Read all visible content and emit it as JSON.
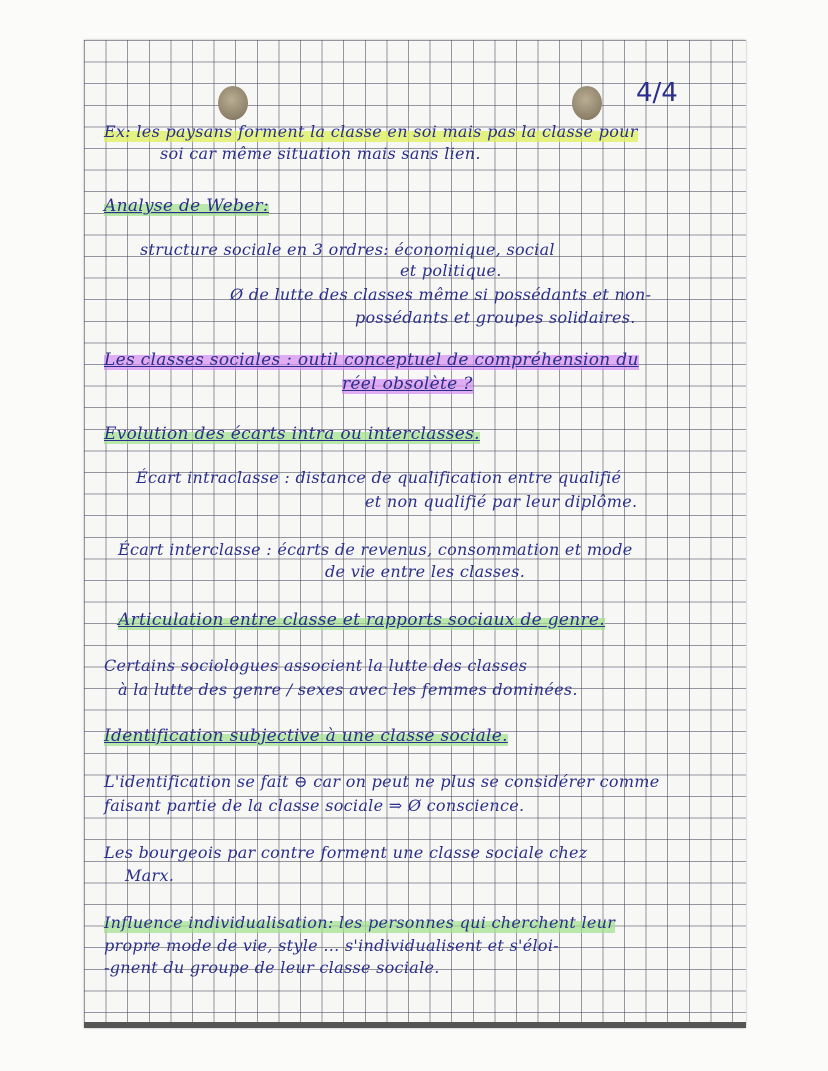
{
  "page_number": "4/4",
  "colors": {
    "ink": "#2b2f8c",
    "highlight_yellow": "#def05a",
    "highlight_green": "#a0e18c",
    "highlight_pink": "#d78cf0"
  },
  "lines": [
    "Ex: les paysans forment la classe en soi mais pas la classe pour",
    "soi car même situation mais sans lien.",
    "Analyse de Weber:",
    "structure sociale en 3 ordres: économique, social",
    "et politique.",
    "Ø de lutte des classes même si possédants et non-",
    "possédants et groupes solidaires.",
    "Les classes sociales : outil conceptuel de compréhension du",
    "réel obsolète ?",
    "Evolution des écarts intra ou interclasses.",
    "Écart intraclasse : distance de qualification entre qualifié",
    "et non qualifié par leur diplôme.",
    "Écart interclasse : écarts de revenus, consommation et mode",
    "de vie entre les classes.",
    "Articulation entre classe et rapports sociaux de genre.",
    "Certains sociologues associent la lutte des classes",
    "à la lutte des genre / sexes avec les femmes dominées.",
    "Identification subjective à une classe sociale.",
    "L'identification se fait ⊖ car on peut ne plus se considérer comme",
    "faisant partie de la classe sociale ⇒ Ø conscience.",
    "Les bourgeois par contre forment une classe sociale chez",
    "Marx.",
    "Influence individualisation: les personnes qui cherchent leur",
    "propre mode de vie, style ... s'individualisent et s'éloi-",
    "-gnent du groupe de leur classe sociale."
  ]
}
